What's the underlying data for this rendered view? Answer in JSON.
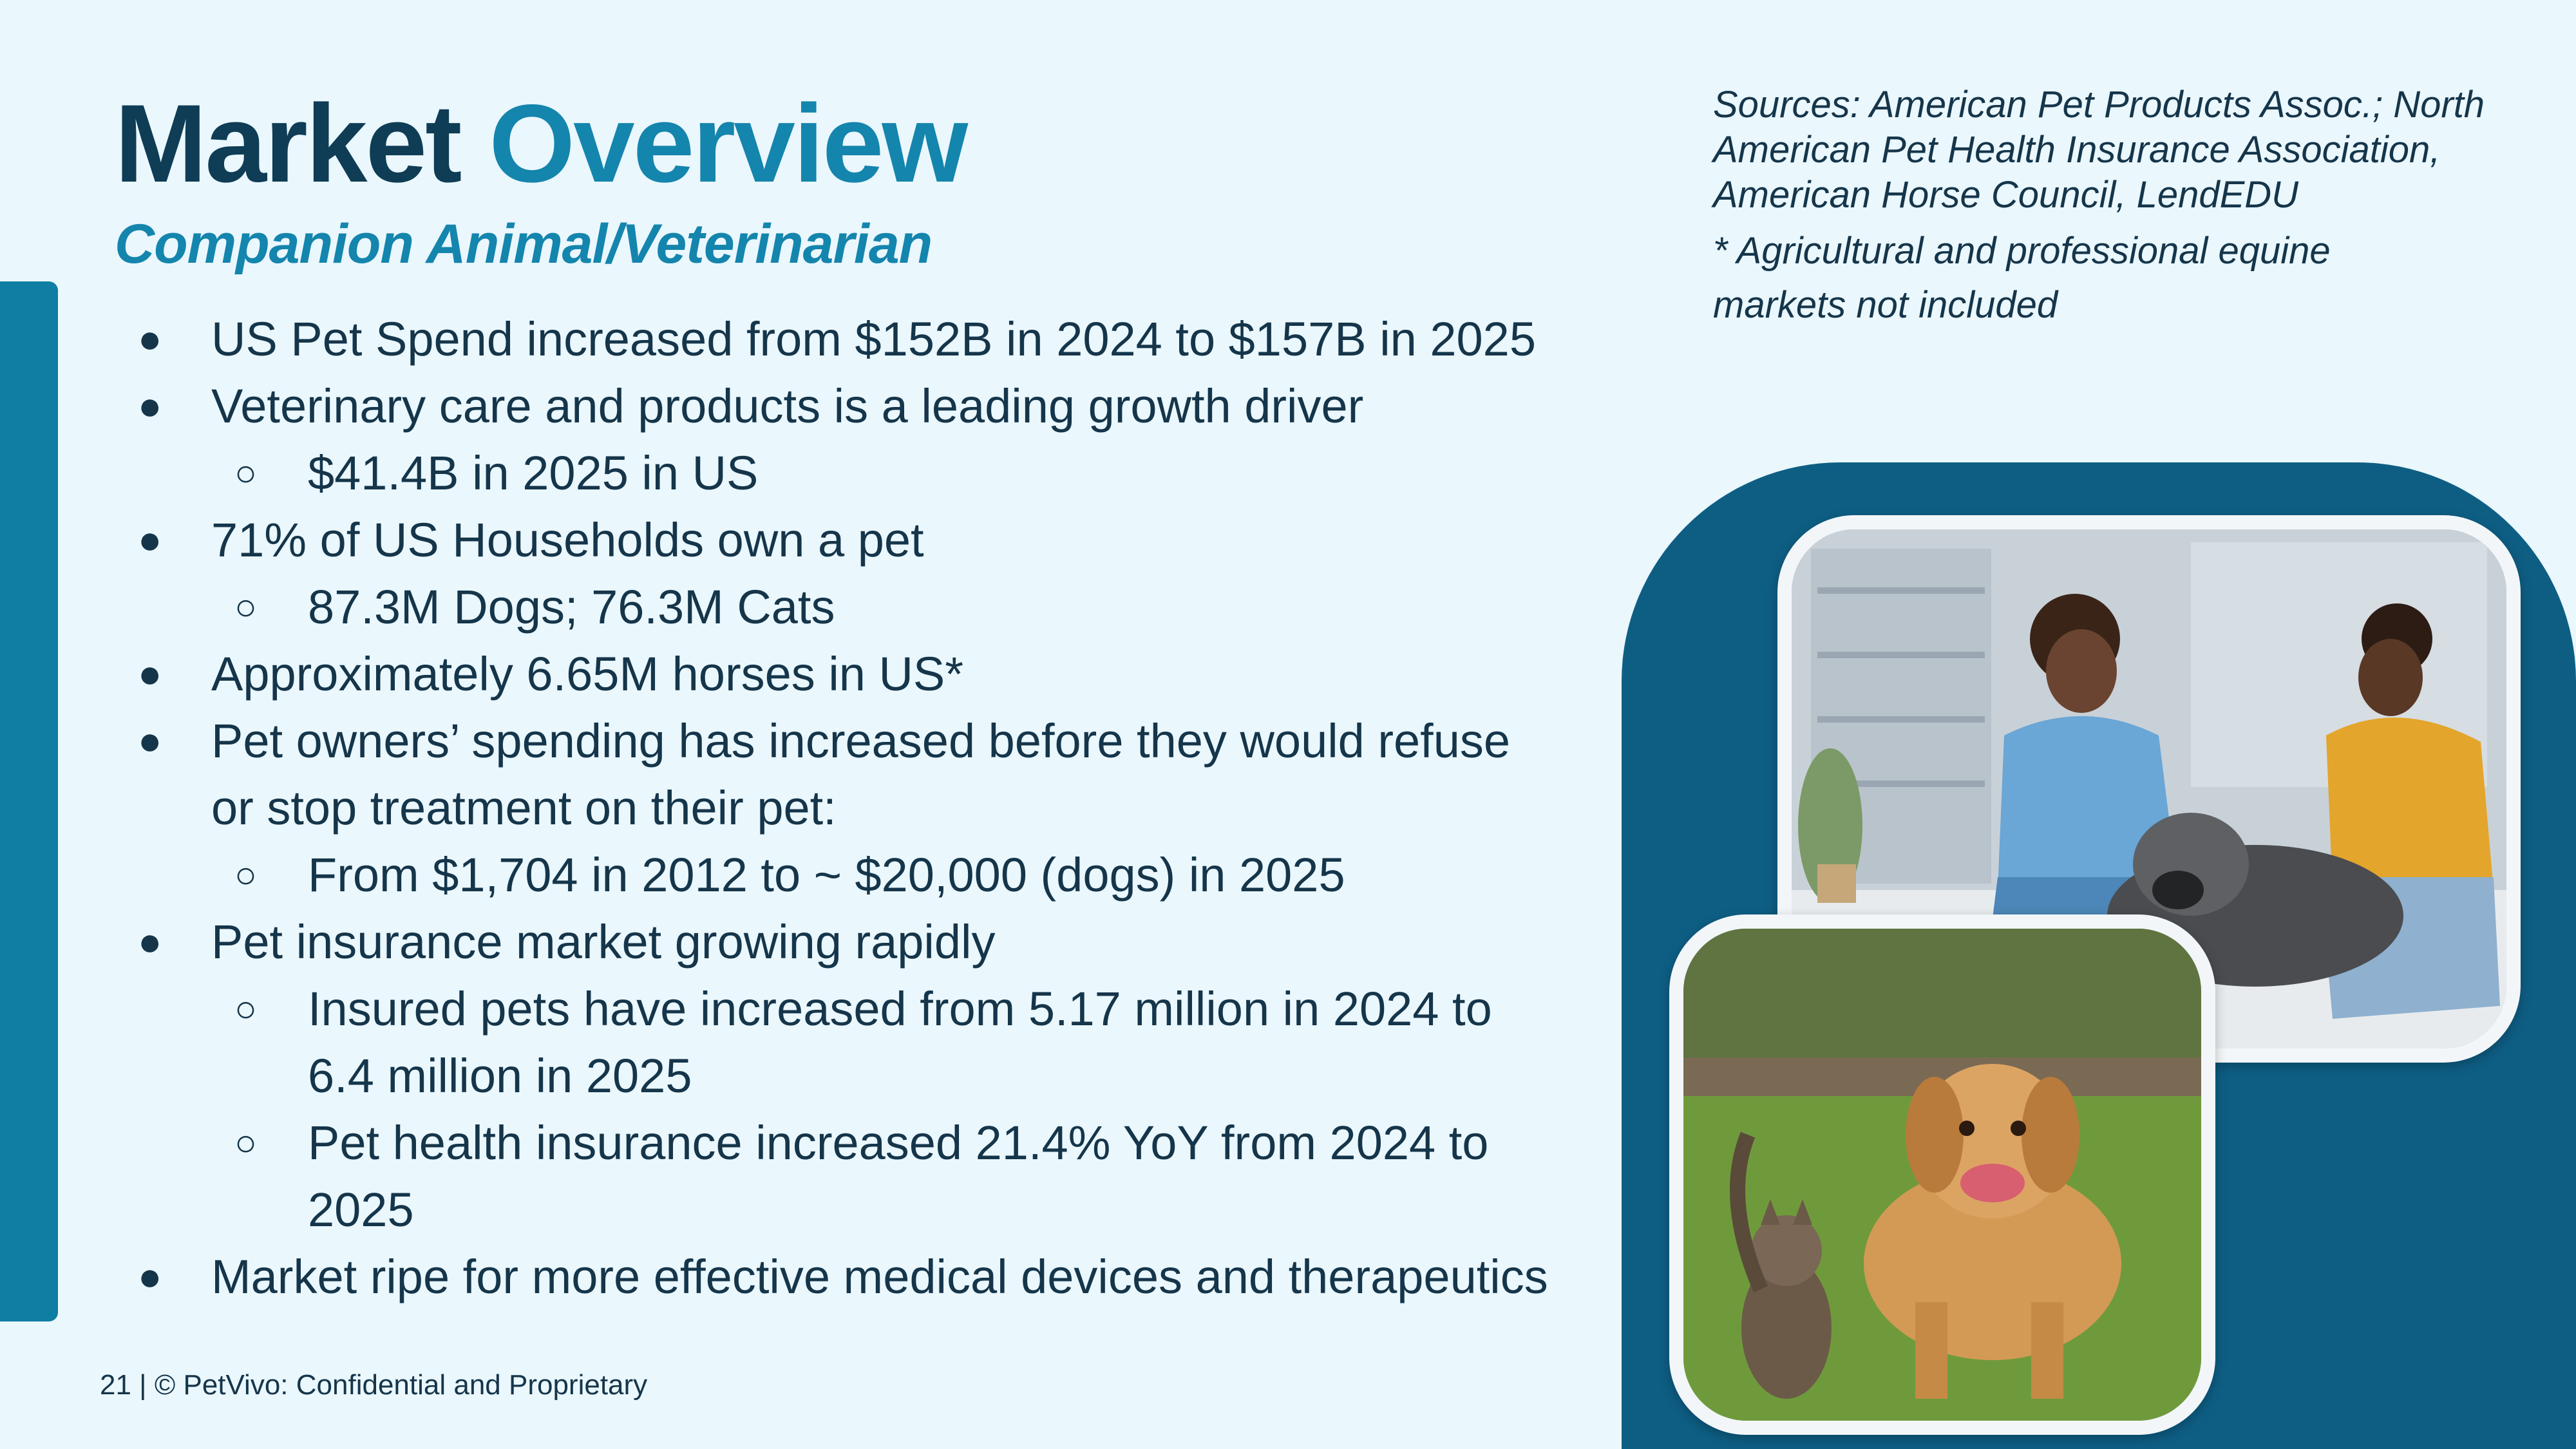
{
  "slide": {
    "title_part1": "Market",
    "title_part2": "Overview",
    "subtitle": "Companion Animal/Veterinarian"
  },
  "bullets": [
    {
      "level": 1,
      "text": "US Pet Spend increased from $152B in 2024 to $157B in 2025"
    },
    {
      "level": 1,
      "text": "Veterinary care and products is a leading growth driver"
    },
    {
      "level": 2,
      "text": "$41.4B in 2025 in US"
    },
    {
      "level": 1,
      "text": "71% of US Households own a pet"
    },
    {
      "level": 2,
      "text": "87.3M Dogs; 76.3M Cats"
    },
    {
      "level": 1,
      "text": "Approximately 6.65M horses in US*"
    },
    {
      "level": 1,
      "text": "Pet owners’ spending has increased before they would refuse"
    },
    {
      "level": 0,
      "text": "or stop treatment on their pet:"
    },
    {
      "level": 2,
      "text": "From $1,704 in 2012 to ~ $20,000 (dogs) in 2025"
    },
    {
      "level": 1,
      "text": "Pet insurance market growing rapidly"
    },
    {
      "level": 2,
      "text": "Insured pets have increased from 5.17 million in 2024 to"
    },
    {
      "level": 0,
      "text": "6.4 million in 2025"
    },
    {
      "level": 2,
      "text": "Pet health insurance increased 21.4% YoY from 2024 to"
    },
    {
      "level": 0,
      "text": "2025"
    },
    {
      "level": 1,
      "text": "Market ripe for more effective medical devices and therapeutics"
    }
  ],
  "bullet_marks": {
    "level1": "●",
    "level2": "○"
  },
  "sources": {
    "line1": "Sources: American Pet Products Assoc.; North",
    "line2": "American Pet Health Insurance Association,",
    "line3": "American Horse Council, LendEDU",
    "note_line1": "* Agricultural and professional equine",
    "note_line2": "markets not included"
  },
  "images": {
    "top": "veterinarian-with-owner-and-dog-photo",
    "bottom": "golden-retriever-and-tabby-cat-running-photo"
  },
  "footer": {
    "text": "21 | © PetVivo: Confidential and Proprietary"
  },
  "colors": {
    "background": "#eaf7fd",
    "accent_teal": "#0f7ea3",
    "title_dark": "#0e3d55",
    "title_accent": "#1485ad",
    "panel_blue": "#0e5e84",
    "text": "#15354a"
  }
}
